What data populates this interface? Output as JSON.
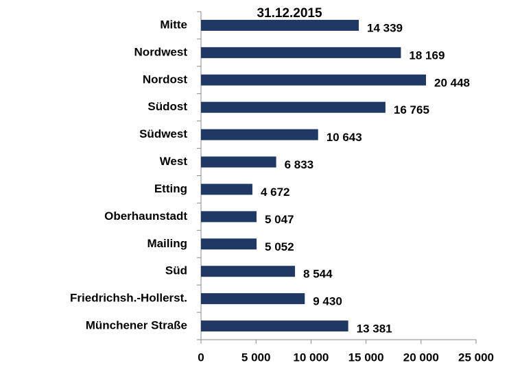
{
  "chart_data": {
    "type": "bar",
    "orientation": "horizontal",
    "title": "31.12.2015",
    "categories": [
      "Mitte",
      "Nordwest",
      "Nordost",
      "Südost",
      "Südwest",
      "West",
      "Etting",
      "Oberhaunstadt",
      "Mailing",
      "Süd",
      "Friedrichsh.-Hollerst.",
      "Münchener Straße"
    ],
    "values": [
      14339,
      18169,
      20448,
      16765,
      10643,
      6833,
      4672,
      5047,
      5052,
      8544,
      9430,
      13381
    ],
    "value_labels": [
      "14 339",
      "18 169",
      "20 448",
      "16 765",
      "10 643",
      "6 833",
      "4 672",
      "5 047",
      "5 052",
      "8 544",
      "9 430",
      "13 381"
    ],
    "color": "#203864",
    "xlim": [
      0,
      25000
    ],
    "xticks": [
      0,
      {
        "value": 5000,
        "label": "5 000"
      },
      {
        "value": 10000,
        "label": "10 000"
      },
      {
        "value": 15000,
        "label": "15 000"
      },
      {
        "value": 20000,
        "label": "20 000"
      },
      {
        "value": 25000,
        "label": "25 000"
      }
    ]
  }
}
